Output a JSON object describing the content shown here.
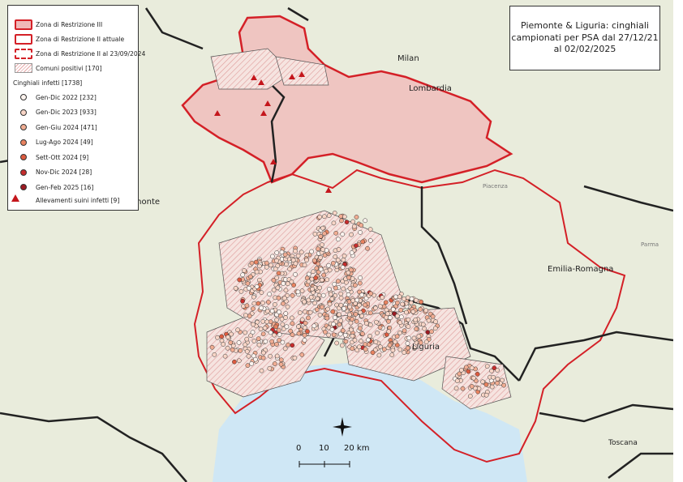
{
  "title": "Piemonte & Liguria: cinghiali campionati per PSA dal 27/12/21 al 02/02/2025",
  "legend": {
    "zones": [
      {
        "label": "Zona di Restrizione III",
        "style": "filled",
        "color": "#d42027",
        "fill": "#f0b8b8"
      },
      {
        "label": "Zona di Restrizione II attuale",
        "style": "outline",
        "color": "#d42027"
      },
      {
        "label": "Zona di Restrizione II al 23/09/2024",
        "style": "dashed",
        "color": "#d42027"
      },
      {
        "label": "Comuni positivi [170]",
        "style": "hatched",
        "color": "#e6a8a8"
      }
    ],
    "group_label": "Cinghiali infetti [1738]",
    "points": [
      {
        "label": "Gen-Dic 2022 [232]",
        "color": "#fdf3ee"
      },
      {
        "label": "Gen-Dic 2023 [933]",
        "color": "#f8d5c6"
      },
      {
        "label": "Gen-Giu 2024 [471]",
        "color": "#f0ac92"
      },
      {
        "label": "Lug-Ago 2024 [49]",
        "color": "#e8825f"
      },
      {
        "label": "Sett-Ott 2024 [9]",
        "color": "#dc5a3f"
      },
      {
        "label": "Nov-Dic 2024 [28]",
        "color": "#c52d2d"
      },
      {
        "label": "Gen-Feb 2025 [16]",
        "color": "#9c1a22"
      }
    ],
    "farms": {
      "label": "Allevamenti suini infetti [9]",
      "color": "#c4161c"
    }
  },
  "places": {
    "milan": "Milan",
    "lombardia": "Lombardia",
    "piemonte": "Piemonte",
    "emilia": "Emilia-Romagna",
    "liguria": "Liguria",
    "toscana": "Toscana",
    "piacenza": "Piacenza",
    "parma": "Parma"
  },
  "scale": {
    "ticks": [
      "0",
      "10",
      "20 km"
    ]
  },
  "colors": {
    "land": "#e9ecdc",
    "sea": "#cfe7f5",
    "zone_border": "#d42027",
    "region_border": "#222222"
  }
}
